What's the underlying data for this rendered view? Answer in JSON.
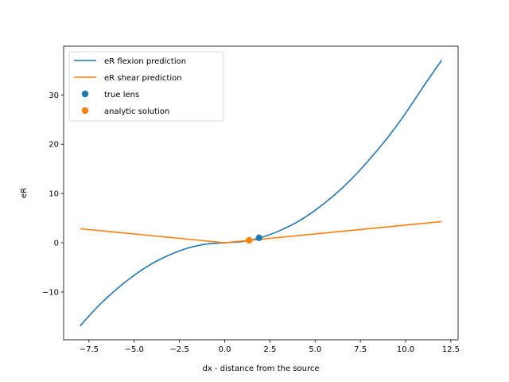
{
  "chart_data": {
    "type": "line",
    "title": "",
    "xlabel": "dx - distance from the source",
    "ylabel": "eR",
    "xlim": [
      -8.9,
      12.9
    ],
    "ylim": [
      -19.7,
      39.9
    ],
    "xticks": [
      -7.5,
      -5.0,
      -2.5,
      0.0,
      2.5,
      5.0,
      7.5,
      10.0,
      12.5
    ],
    "xtick_labels": [
      "−7.5",
      "−5.0",
      "−2.5",
      "0.0",
      "2.5",
      "5.0",
      "7.5",
      "10.0",
      "12.5"
    ],
    "yticks": [
      -10,
      0,
      10,
      20,
      30
    ],
    "ytick_labels": [
      "−10",
      "0",
      "10",
      "20",
      "30"
    ],
    "grid": false,
    "legend_position": "top-left",
    "series": [
      {
        "name": "eR flexion prediction",
        "kind": "line",
        "color": "#1f77b4",
        "x": [
          -8,
          -7,
          -6,
          -5,
          -4,
          -3,
          -2,
          -1,
          0,
          1,
          2,
          3,
          4,
          5,
          6,
          7,
          8,
          9,
          10,
          11,
          12
        ],
        "y": [
          -16.9,
          -12.9,
          -9.5,
          -6.6,
          -4.2,
          -2.4,
          -1.05,
          -0.26,
          0,
          0.26,
          1.05,
          2.4,
          4.2,
          6.6,
          9.5,
          12.9,
          16.9,
          21.3,
          26.3,
          31.8,
          37.1
        ]
      },
      {
        "name": "eR shear prediction",
        "kind": "line",
        "color": "#ff7f0e",
        "x": [
          -8,
          0,
          12
        ],
        "y": [
          2.85,
          0,
          4.3
        ]
      },
      {
        "name": "true lens",
        "kind": "scatter",
        "color": "#1f77b4",
        "x": [
          1.9
        ],
        "y": [
          1.0
        ]
      },
      {
        "name": "analytic solution",
        "kind": "scatter",
        "color": "#ff7f0e",
        "x": [
          1.35
        ],
        "y": [
          0.5
        ]
      }
    ]
  }
}
